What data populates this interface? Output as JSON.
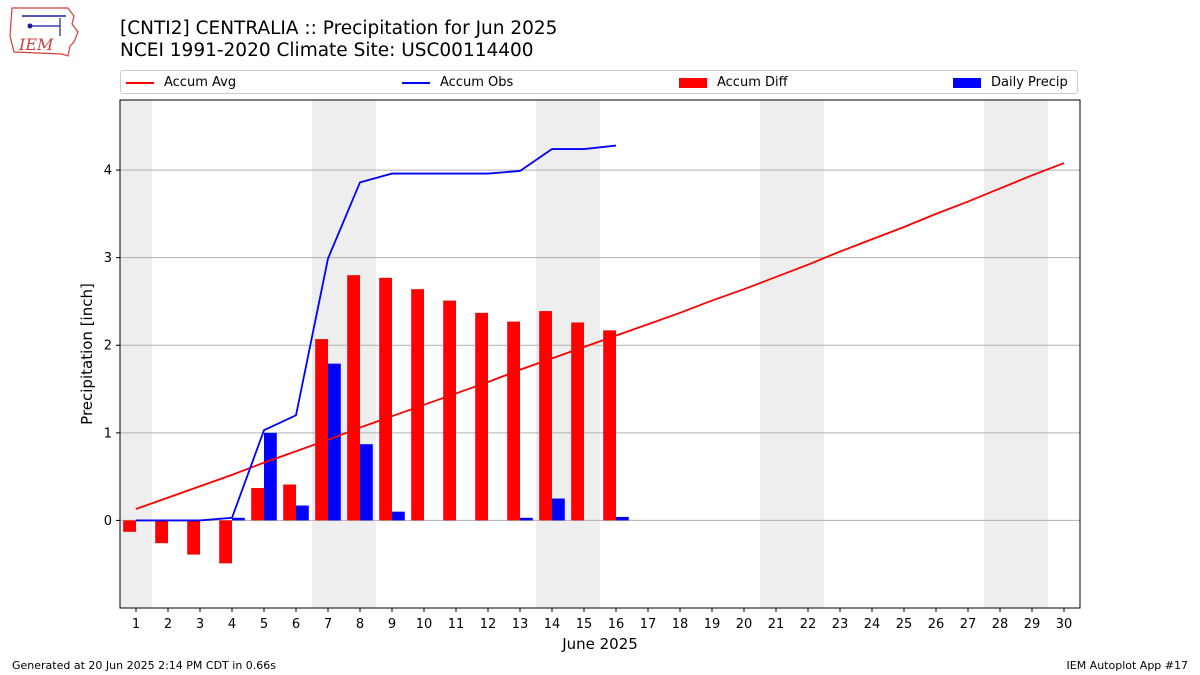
{
  "header": {
    "title_line1": "[CNTI2] CENTRALIA :: Precipitation for Jun 2025",
    "title_line2": "NCEI 1991-2020 Climate Site: USC00114400"
  },
  "logo": {
    "text": "IEM"
  },
  "footer": {
    "left": "Generated at 20 Jun 2025 2:14 PM CDT in 0.66s",
    "right": "IEM Autoplot App #17"
  },
  "colors": {
    "avg": "#ff0000",
    "obs": "#0000ff",
    "diff": "#ff0000",
    "daily": "#0000ff",
    "weekend_shade": "#eeeeee",
    "grid": "#b0b0b0"
  },
  "chart_data": {
    "type": "bar",
    "xlabel": "June 2025",
    "ylabel": "Precipitation [inch]",
    "xlim": [
      0.5,
      30.5
    ],
    "ylim": [
      -1.0,
      4.8
    ],
    "yticks": [
      0,
      1,
      2,
      3,
      4
    ],
    "grid": "horizontal",
    "legend_position": "top, outside plot",
    "days": [
      1,
      2,
      3,
      4,
      5,
      6,
      7,
      8,
      9,
      10,
      11,
      12,
      13,
      14,
      15,
      16,
      17,
      18,
      19,
      20,
      21,
      22,
      23,
      24,
      25,
      26,
      27,
      28,
      29,
      30
    ],
    "shaded_days": [
      1,
      7,
      8,
      14,
      15,
      21,
      22,
      28,
      29
    ],
    "series": [
      {
        "name": "Accum Avg",
        "kind": "line",
        "x": [
          1,
          2,
          3,
          4,
          5,
          6,
          7,
          8,
          9,
          10,
          11,
          12,
          13,
          14,
          15,
          16,
          17,
          18,
          19,
          20,
          21,
          22,
          23,
          24,
          25,
          26,
          27,
          28,
          29,
          30
        ],
        "values": [
          0.13,
          0.26,
          0.39,
          0.52,
          0.66,
          0.79,
          0.92,
          1.06,
          1.19,
          1.32,
          1.45,
          1.58,
          1.72,
          1.85,
          1.98,
          2.11,
          2.24,
          2.37,
          2.51,
          2.64,
          2.78,
          2.92,
          3.07,
          3.21,
          3.35,
          3.5,
          3.64,
          3.79,
          3.94,
          4.08
        ]
      },
      {
        "name": "Accum Obs",
        "kind": "line",
        "x": [
          1,
          2,
          3,
          4,
          5,
          6,
          7,
          8,
          9,
          10,
          11,
          12,
          13,
          14,
          15,
          16
        ],
        "values": [
          0.0,
          0.0,
          0.0,
          0.03,
          1.03,
          1.2,
          2.99,
          3.86,
          3.96,
          3.96,
          3.96,
          3.96,
          3.99,
          4.24,
          4.24,
          4.28
        ]
      },
      {
        "name": "Accum Diff",
        "kind": "bar",
        "x": [
          1,
          2,
          3,
          4,
          5,
          6,
          7,
          8,
          9,
          10,
          11,
          12,
          13,
          14,
          15,
          16
        ],
        "values": [
          -0.13,
          -0.26,
          -0.39,
          -0.49,
          0.37,
          0.41,
          2.07,
          2.8,
          2.77,
          2.64,
          2.51,
          2.37,
          2.27,
          2.39,
          2.26,
          2.17
        ]
      },
      {
        "name": "Daily Precip",
        "kind": "bar",
        "x": [
          1,
          2,
          3,
          4,
          5,
          6,
          7,
          8,
          9,
          10,
          11,
          12,
          13,
          14,
          15,
          16
        ],
        "values": [
          0.0,
          0.0,
          0.0,
          0.03,
          1.0,
          0.17,
          1.79,
          0.87,
          0.1,
          0.0,
          0.0,
          0.0,
          0.03,
          0.25,
          0.0,
          0.04
        ]
      }
    ]
  }
}
